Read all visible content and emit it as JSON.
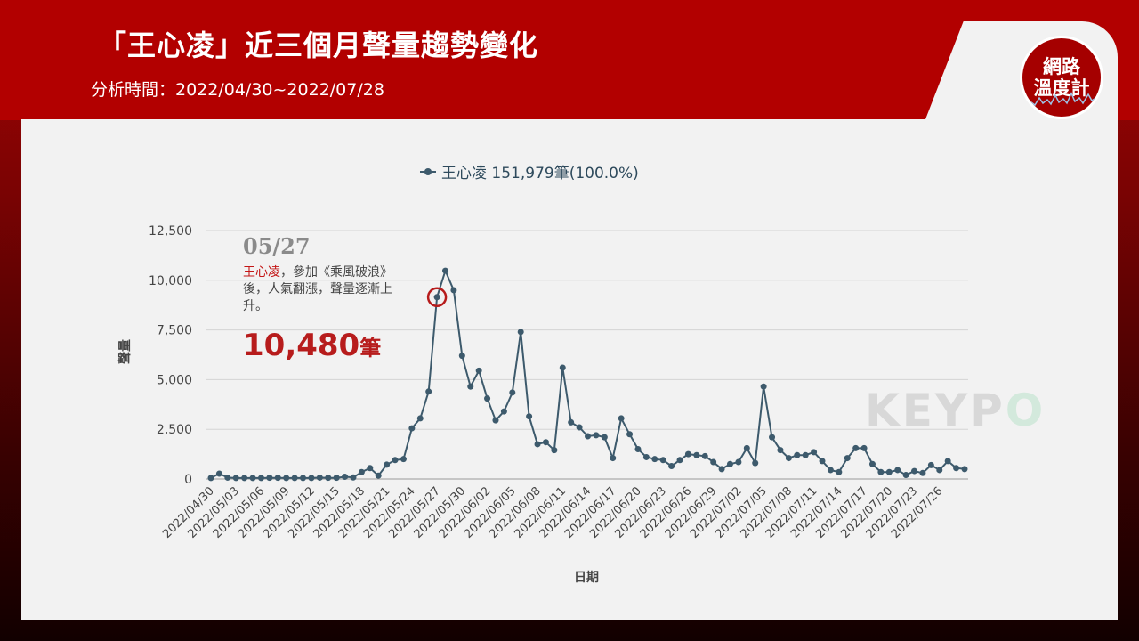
{
  "header": {
    "title": "「王心凌」近三個月聲量趨勢變化",
    "subtitle": "分析時間：2022/04/30~2022/07/28"
  },
  "logo": {
    "line1": "網路",
    "line2": "溫度計"
  },
  "watermark": {
    "text_a": "KEYP",
    "text_b": "O"
  },
  "annotation": {
    "date": "05/27",
    "name": "王心凌",
    "text": "，參加《乘風破浪》後，人氣翻漲，聲量逐漸上升。",
    "value": "10,480",
    "unit": "筆"
  },
  "colors": {
    "line": "#3d5a6c",
    "brand_red": "#b20000",
    "highlight": "#b71c1c"
  },
  "chart_data": {
    "type": "line",
    "legend": "王心凌 151,979筆(100.0%)",
    "xlabel": "日期",
    "ylabel": "聲量",
    "ylim": [
      0,
      12500
    ],
    "yticks": [
      "0",
      "2,500",
      "5,000",
      "7,500",
      "10,000",
      "12,500"
    ],
    "ytick_values": [
      0,
      2500,
      5000,
      7500,
      10000,
      12500
    ],
    "xtick_labels": [
      "2022/04/30",
      "2022/05/03",
      "2022/05/06",
      "2022/05/09",
      "2022/05/12",
      "2022/05/15",
      "2022/05/18",
      "2022/05/21",
      "2022/05/24",
      "2022/05/27",
      "2022/05/30",
      "2022/06/02",
      "2022/06/05",
      "2022/06/08",
      "2022/06/11",
      "2022/06/14",
      "2022/06/17",
      "2022/06/20",
      "2022/06/23",
      "2022/06/26",
      "2022/06/29",
      "2022/07/02",
      "2022/07/05",
      "2022/07/08",
      "2022/07/11",
      "2022/07/14",
      "2022/07/17",
      "2022/07/20",
      "2022/07/23",
      "2022/07/26"
    ],
    "x_start": "2022/04/30",
    "x_end": "2022/07/28",
    "highlight_date": "2022/05/27",
    "series": [
      {
        "name": "王心凌",
        "values": [
          50,
          270,
          70,
          50,
          50,
          50,
          50,
          60,
          60,
          50,
          50,
          50,
          50,
          70,
          60,
          60,
          110,
          80,
          350,
          550,
          170,
          720,
          950,
          1000,
          2550,
          3050,
          4400,
          9150,
          10480,
          9500,
          6200,
          4650,
          5450,
          4050,
          2950,
          3400,
          4350,
          7400,
          3150,
          1750,
          1850,
          1450,
          5600,
          2850,
          2600,
          2150,
          2200,
          2100,
          1050,
          3050,
          2250,
          1500,
          1100,
          1000,
          950,
          650,
          950,
          1250,
          1200,
          1150,
          850,
          500,
          750,
          850,
          1550,
          800,
          4650,
          2100,
          1450,
          1050,
          1200,
          1200,
          1350,
          900,
          450,
          350,
          1050,
          1550,
          1550,
          750,
          350,
          350,
          450,
          200,
          400,
          300,
          700,
          450,
          900,
          550,
          500
        ]
      }
    ]
  }
}
